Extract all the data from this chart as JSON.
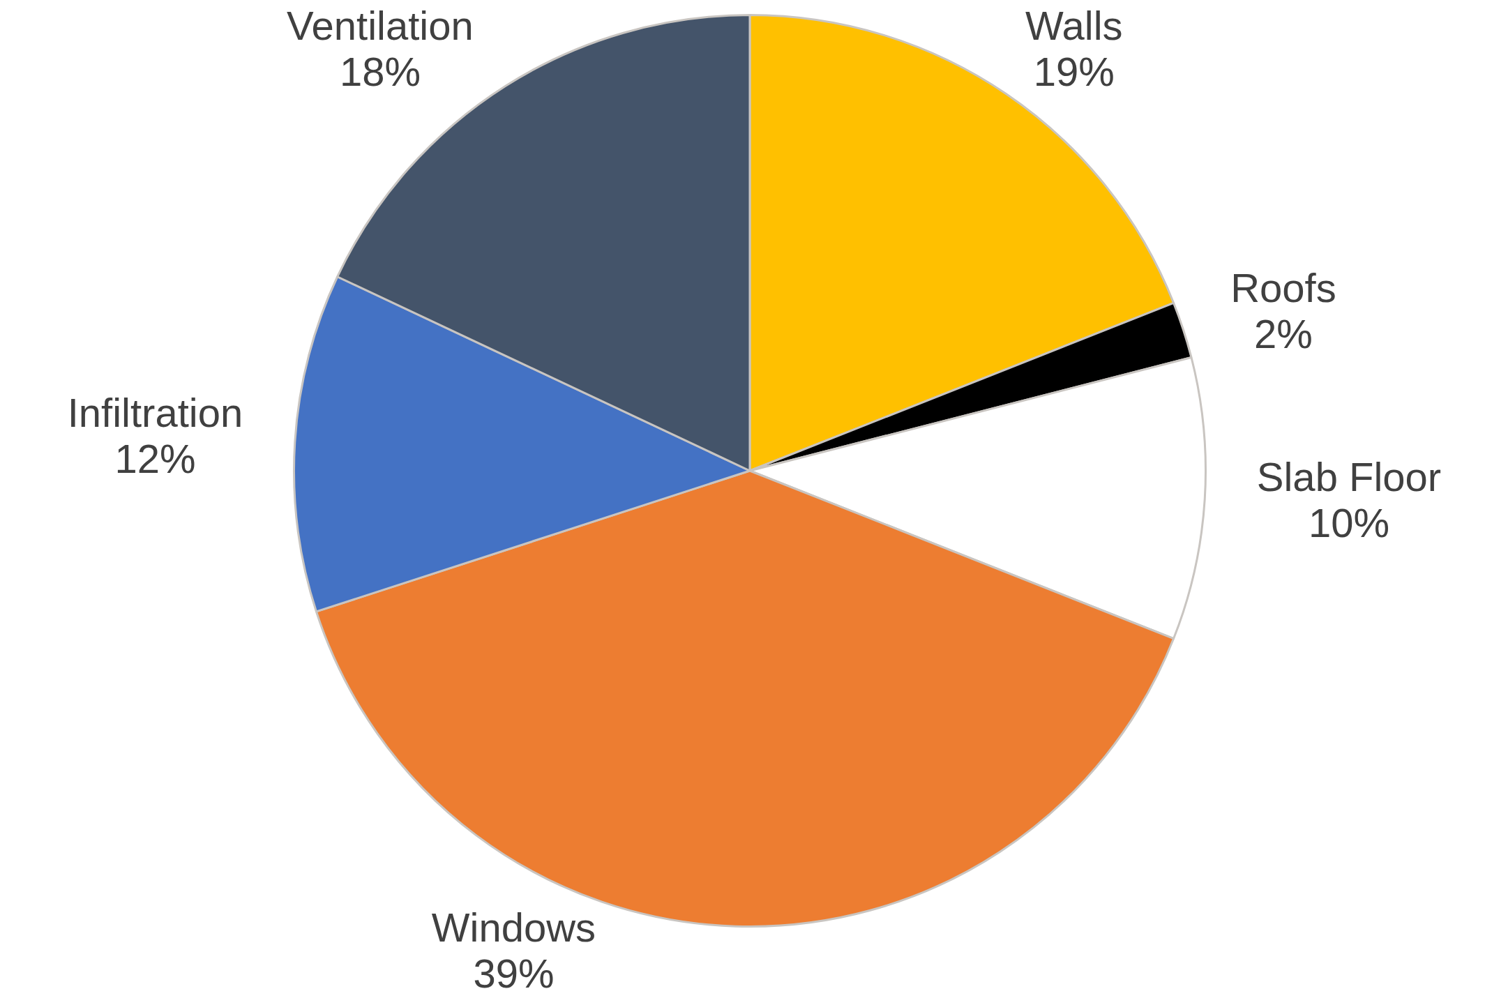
{
  "chart_data": {
    "type": "pie",
    "categories": [
      "Walls",
      "Roofs",
      "Slab Floor",
      "Windows",
      "Infiltration",
      "Ventilation"
    ],
    "values": [
      19,
      2,
      10,
      39,
      12,
      18
    ],
    "value_labels": [
      "19%",
      "2%",
      "10%",
      "39%",
      "12%",
      "18%"
    ],
    "colors": [
      "#ffc000",
      "#000000",
      "#ffffff",
      "#ed7d31",
      "#4472c4",
      "#44546a"
    ],
    "legend": false
  }
}
